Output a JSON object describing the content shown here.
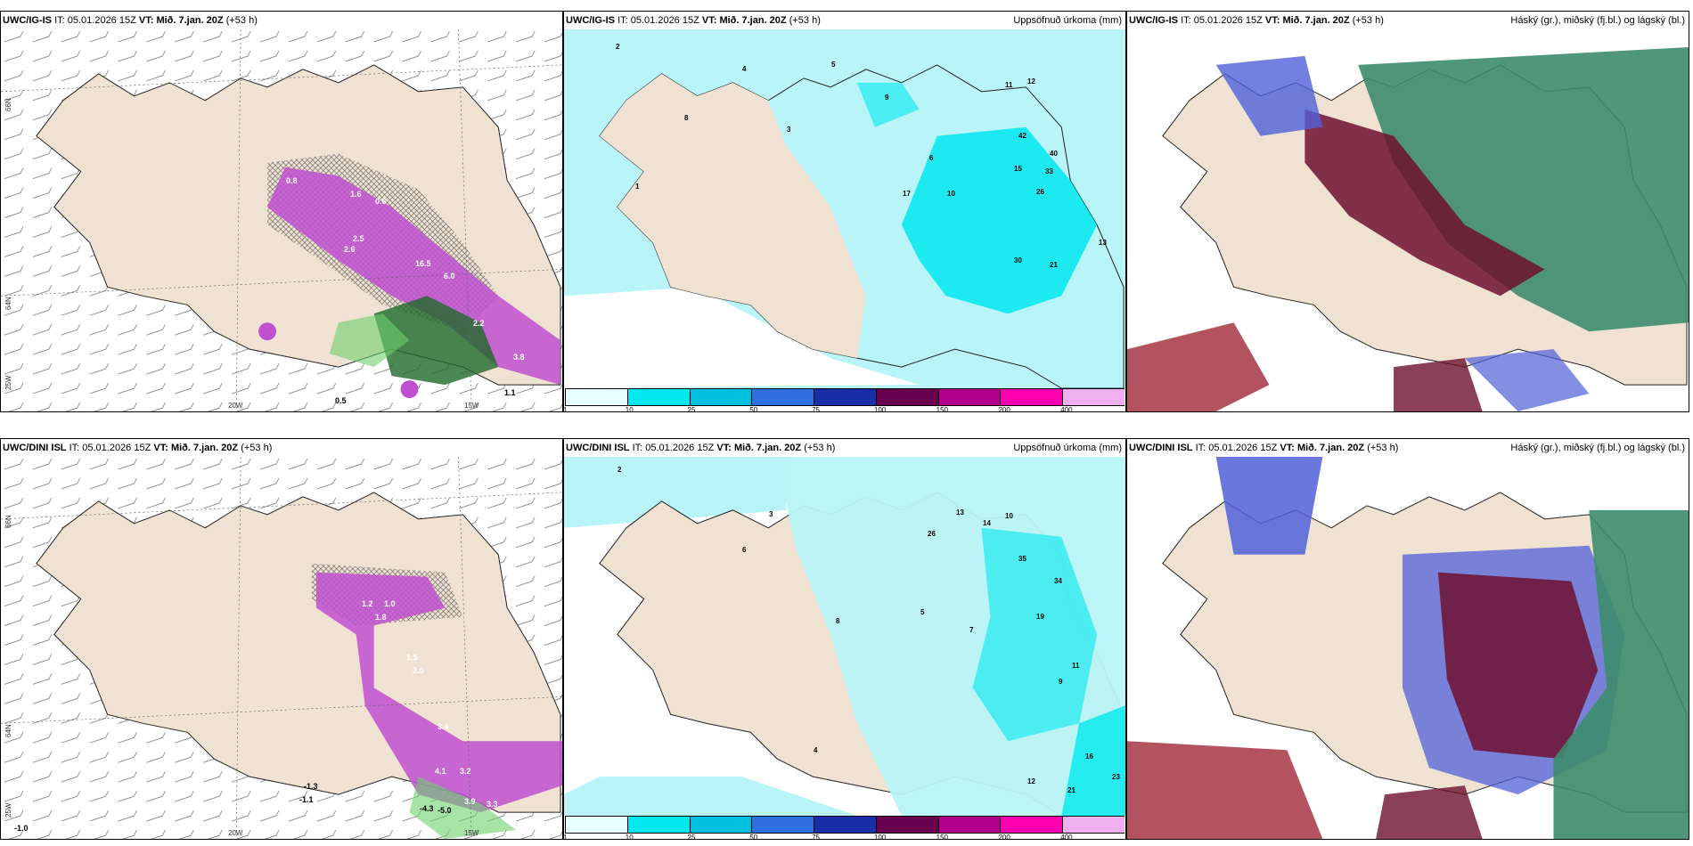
{
  "panels": {
    "top_left": {
      "model": "UWC/IG-IS",
      "it_label": "IT:",
      "it": "05.01.2026 15Z",
      "vt_label": "VT:",
      "vt": "Mið. 7.jan. 20Z",
      "lead": "(+53 h)",
      "subtitle": ""
    },
    "top_mid": {
      "model": "UWC/IG-IS",
      "it_label": "IT:",
      "it": "05.01.2026 15Z",
      "vt_label": "VT:",
      "vt": "Mið. 7.jan. 20Z",
      "lead": "(+53 h)",
      "subtitle": "Uppsöfnuð úrkoma (mm)"
    },
    "top_right": {
      "model": "UWC/IG-IS",
      "it_label": "IT:",
      "it": "05.01.2026 15Z",
      "vt_label": "VT:",
      "vt": "Mið. 7.jan. 20Z",
      "lead": "(+53 h)",
      "subtitle": "Háský (gr.), miðský (fj.bl.) og lágský (bl.)"
    },
    "bottom_left": {
      "model": "UWC/DINI ISL",
      "it_label": "IT:",
      "it": "05.01.2026 15Z",
      "vt_label": "VT:",
      "vt": "Mið. 7.jan. 20Z",
      "lead": "(+53 h)",
      "subtitle": ""
    },
    "bottom_mid": {
      "model": "UWC/DINI ISL",
      "it_label": "IT:",
      "it": "05.01.2026 15Z",
      "vt_label": "VT:",
      "vt": "Mið. 7.jan. 20Z",
      "lead": "(+53 h)",
      "subtitle": "Uppsöfnuð úrkoma (mm)"
    },
    "bottom_right": {
      "model": "UWC/DINI ISL",
      "it_label": "IT:",
      "it": "05.01.2026 15Z",
      "vt_label": "VT:",
      "vt": "Mið. 7.jan. 20Z",
      "lead": "(+53 h)",
      "subtitle": "Háský (gr.), miðský (fj.bl.) og lágský (bl.)"
    }
  },
  "axes": {
    "lat_66": "66N",
    "lat_64": "64N",
    "lon_25": "25W",
    "lon_20": "20W",
    "lon_15": "15W"
  },
  "colorbar": {
    "labels": [
      "1",
      "10",
      "25",
      "50",
      "75",
      "100",
      "150",
      "200",
      "400"
    ],
    "colors": [
      "#e6ffff",
      "#00e8ee",
      "#00bfdf",
      "#2f6fe0",
      "#1a2ea8",
      "#6a0050",
      "#b0008a",
      "#ff00b0",
      "#f0b0f0"
    ]
  },
  "top_left_values": [
    "0.8",
    "1.6",
    "2.6",
    "2.5",
    "16.5",
    "6.0",
    "2.2",
    "3.8",
    "0.6",
    "1.1",
    "0.5"
  ],
  "bottom_left_values": [
    "1.2",
    "1.0",
    "1.8",
    "1.5",
    "2.0",
    "3.4",
    "4.1",
    "3.2",
    "-1.3",
    "-1.1",
    "-4.3",
    "-5.0",
    "3.9",
    "3.3",
    "-1.0"
  ],
  "top_mid_values": [
    "2",
    "4",
    "11",
    "12",
    "42",
    "40",
    "33",
    "26",
    "15",
    "17",
    "13",
    "21",
    "30",
    "6",
    "10",
    "9",
    "3",
    "1",
    "8",
    "5"
  ],
  "bottom_mid_values": [
    "2",
    "3",
    "6",
    "14",
    "10",
    "35",
    "34",
    "19",
    "26",
    "13",
    "11",
    "9",
    "7",
    "5",
    "12",
    "21",
    "23",
    "16",
    "8",
    "4"
  ],
  "colors": {
    "land": "#efe2d3",
    "precip_light": "#b8f4f8",
    "precip_mid": "#00e8ee",
    "magenta": "#c050d0",
    "high": "#3c8c6c",
    "mid": "#6e1030",
    "low": "#5060d8"
  }
}
